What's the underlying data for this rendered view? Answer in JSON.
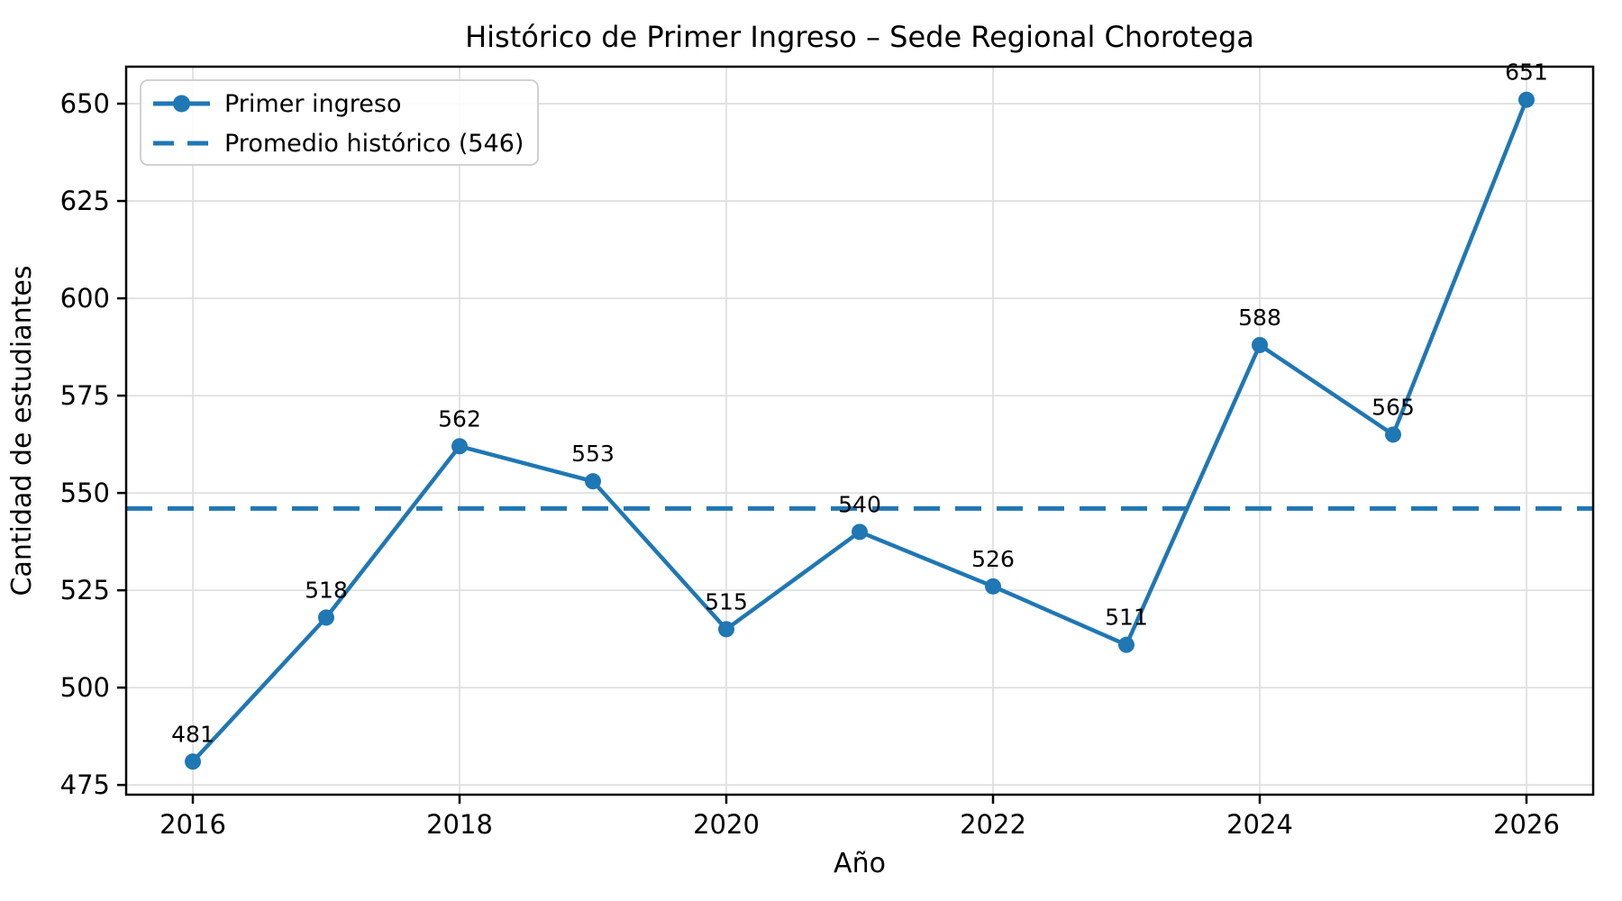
{
  "chart_data": {
    "type": "line",
    "title": "Histórico de Primer Ingreso – Sede Regional Chorotega",
    "xlabel": "Año",
    "ylabel": "Cantidad de estudiantes",
    "x": [
      2016,
      2017,
      2018,
      2019,
      2020,
      2021,
      2022,
      2023,
      2024,
      2025,
      2026
    ],
    "series": [
      {
        "name": "Primer ingreso",
        "type": "line-markers",
        "values": [
          481,
          518,
          562,
          553,
          515,
          540,
          526,
          511,
          588,
          565,
          651
        ]
      },
      {
        "name": "Promedio histórico (546)",
        "type": "hline",
        "value": 546
      }
    ],
    "point_labels": [
      "481",
      "518",
      "562",
      "553",
      "515",
      "540",
      "526",
      "511",
      "588",
      "565",
      "651"
    ],
    "xticks": [
      2016,
      2018,
      2020,
      2022,
      2024,
      2026
    ],
    "yticks": [
      475,
      500,
      525,
      550,
      575,
      600,
      625,
      650
    ],
    "xlim": [
      2015.5,
      2026.5
    ],
    "ylim": [
      472.5,
      659.5
    ],
    "grid": true,
    "legend_position": "upper left",
    "colors": {
      "line": "#1f77b4",
      "grid": "#e0e0e0",
      "spine": "#000000",
      "text": "#000000",
      "legend_border": "#cccccc",
      "background": "#ffffff"
    }
  }
}
